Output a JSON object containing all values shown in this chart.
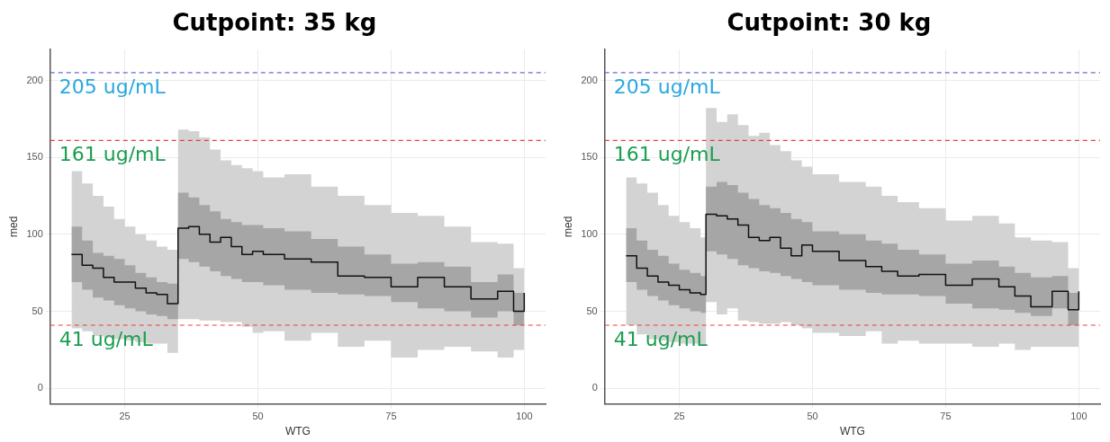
{
  "chart_data": [
    {
      "type": "step",
      "title": "Cutpoint: 35 kg",
      "xlabel": "WTG",
      "ylabel": "med",
      "xlim": [
        11,
        104
      ],
      "xticks": [
        25,
        50,
        75,
        100
      ],
      "ylim": [
        -10,
        220
      ],
      "yticks": [
        0,
        50,
        100,
        150,
        200
      ],
      "grid": true,
      "legend": false,
      "line_style": "solid",
      "marker": "none",
      "x": [
        15,
        17,
        19,
        21,
        23,
        25,
        27,
        29,
        31,
        33,
        35,
        37,
        39,
        41,
        43,
        45,
        47,
        49,
        51,
        55,
        60,
        65,
        70,
        75,
        80,
        85,
        90,
        95,
        98,
        100
      ],
      "series": [
        {
          "color": "#d3d3d3",
          "values": [
            null,
            null,
            null,
            null,
            null,
            null,
            null,
            null,
            null,
            null,
            null,
            null,
            null,
            null,
            null,
            null,
            null,
            null,
            null,
            null,
            null,
            null,
            null,
            null,
            null,
            null,
            null,
            null,
            null,
            null
          ],
          "lower": [
            39,
            37,
            34,
            33,
            32,
            31,
            30,
            29,
            29,
            23,
            45,
            45,
            44,
            44,
            43,
            43,
            40,
            36,
            37,
            31,
            36,
            27,
            31,
            20,
            25,
            27,
            24,
            20,
            25,
            25
          ],
          "upper": [
            141,
            133,
            125,
            118,
            110,
            105,
            100,
            96,
            92,
            90,
            168,
            167,
            163,
            155,
            148,
            145,
            143,
            141,
            137,
            139,
            131,
            125,
            119,
            114,
            112,
            105,
            95,
            94,
            78,
            78
          ]
        },
        {
          "color": "#a6a6a6",
          "values": [
            null,
            null,
            null,
            null,
            null,
            null,
            null,
            null,
            null,
            null,
            null,
            null,
            null,
            null,
            null,
            null,
            null,
            null,
            null,
            null,
            null,
            null,
            null,
            null,
            null,
            null,
            null,
            null,
            null,
            null
          ],
          "lower": [
            69,
            64,
            59,
            57,
            54,
            52,
            50,
            48,
            47,
            45,
            84,
            82,
            79,
            76,
            73,
            71,
            69,
            69,
            67,
            64,
            62,
            61,
            60,
            56,
            52,
            50,
            46,
            50,
            41,
            41
          ],
          "upper": [
            105,
            96,
            88,
            86,
            84,
            80,
            75,
            72,
            69,
            68,
            127,
            124,
            119,
            115,
            110,
            108,
            106,
            106,
            104,
            102,
            97,
            92,
            87,
            81,
            82,
            79,
            69,
            74,
            62,
            62
          ]
        },
        {
          "color": "#111111",
          "values": [
            87,
            80,
            78,
            72,
            69,
            69,
            65,
            62,
            61,
            55,
            104,
            105,
            100,
            95,
            98,
            92,
            87,
            89,
            87,
            84,
            82,
            73,
            72,
            66,
            72,
            66,
            58,
            63,
            50,
            62
          ]
        }
      ],
      "ref_lines": [
        {
          "axis": "y",
          "value": 205,
          "label": "205 ug/mL",
          "color": "#6b6bd6",
          "line_style": "dashed"
        },
        {
          "axis": "y",
          "value": 161,
          "label": "161 ug/mL",
          "color": "#e8413c",
          "line_style": "dashed"
        },
        {
          "axis": "y",
          "value": 41,
          "label": "41 ug/mL",
          "color": "#e8413c",
          "line_style": "dashed"
        }
      ]
    },
    {
      "type": "step",
      "title": "Cutpoint: 30 kg",
      "xlabel": "WTG",
      "ylabel": "med",
      "xlim": [
        11,
        104
      ],
      "xticks": [
        25,
        50,
        75,
        100
      ],
      "ylim": [
        -10,
        220
      ],
      "yticks": [
        0,
        50,
        100,
        150,
        200
      ],
      "grid": true,
      "legend": false,
      "line_style": "solid",
      "marker": "none",
      "x": [
        15,
        17,
        19,
        21,
        23,
        25,
        27,
        29,
        30,
        32,
        34,
        36,
        38,
        40,
        42,
        44,
        46,
        48,
        50,
        55,
        60,
        63,
        66,
        70,
        75,
        80,
        85,
        88,
        91,
        95,
        98,
        100
      ],
      "series": [
        {
          "color": "#d3d3d3",
          "values": [
            null,
            null,
            null,
            null,
            null,
            null,
            null,
            null,
            null,
            null,
            null,
            null,
            null,
            null,
            null,
            null,
            null,
            null,
            null,
            null,
            null,
            null,
            null,
            null,
            null,
            null,
            null,
            null,
            null,
            null,
            null,
            null
          ],
          "lower": [
            41,
            35,
            32,
            31,
            30,
            29,
            29,
            28,
            56,
            48,
            52,
            44,
            43,
            42,
            42,
            43,
            41,
            39,
            36,
            34,
            37,
            29,
            31,
            29,
            29,
            27,
            29,
            25,
            27,
            27,
            27,
            27
          ],
          "upper": [
            137,
            133,
            127,
            119,
            112,
            108,
            104,
            98,
            182,
            173,
            178,
            171,
            164,
            166,
            158,
            154,
            148,
            144,
            139,
            134,
            131,
            125,
            121,
            117,
            109,
            112,
            107,
            98,
            96,
            95,
            78,
            78
          ]
        },
        {
          "color": "#a6a6a6",
          "values": [
            null,
            null,
            null,
            null,
            null,
            null,
            null,
            null,
            null,
            null,
            null,
            null,
            null,
            null,
            null,
            null,
            null,
            null,
            null,
            null,
            null,
            null,
            null,
            null,
            null,
            null,
            null,
            null,
            null,
            null,
            null,
            null
          ],
          "lower": [
            69,
            64,
            60,
            57,
            54,
            52,
            50,
            49,
            89,
            87,
            84,
            80,
            78,
            76,
            75,
            73,
            71,
            69,
            67,
            64,
            62,
            61,
            61,
            60,
            55,
            52,
            51,
            49,
            47,
            52,
            41,
            41
          ],
          "upper": [
            104,
            96,
            90,
            86,
            81,
            77,
            75,
            73,
            131,
            134,
            132,
            127,
            123,
            119,
            117,
            114,
            110,
            108,
            102,
            100,
            96,
            94,
            90,
            87,
            81,
            83,
            79,
            75,
            72,
            73,
            62,
            62
          ]
        },
        {
          "color": "#111111",
          "values": [
            86,
            78,
            73,
            69,
            67,
            64,
            62,
            61,
            113,
            112,
            110,
            106,
            98,
            96,
            98,
            91,
            86,
            93,
            89,
            83,
            79,
            76,
            73,
            74,
            67,
            71,
            66,
            60,
            53,
            63,
            51,
            63
          ]
        }
      ],
      "ref_lines": [
        {
          "axis": "y",
          "value": 205,
          "label": "205 ug/mL",
          "color": "#6b6bd6",
          "line_style": "dashed"
        },
        {
          "axis": "y",
          "value": 161,
          "label": "161 ug/mL",
          "color": "#e8413c",
          "line_style": "dashed"
        },
        {
          "axis": "y",
          "value": 41,
          "label": "41 ug/mL",
          "color": "#e8413c",
          "line_style": "dashed"
        }
      ]
    }
  ]
}
